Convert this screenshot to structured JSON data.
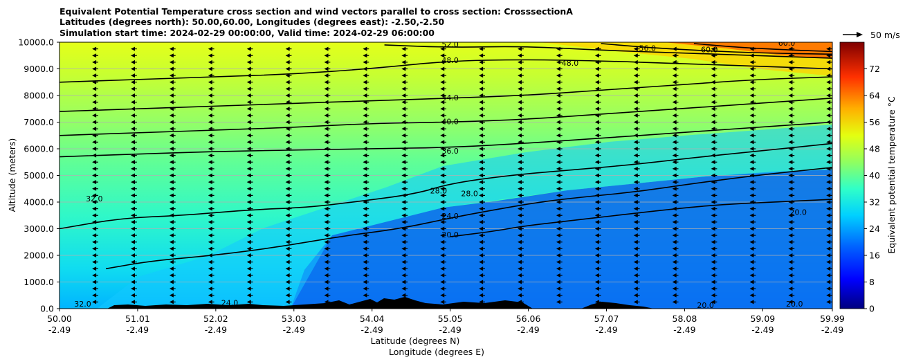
{
  "chart_data": {
    "type": "contourf",
    "title_lines": [
      "Equivalent Potential Temperature cross section and wind vectors parallel to cross section: CrosssectionA",
      "Latitudes (degrees north): 50.00,60.00, Longitudes (degrees east): -2.50,-2.50",
      "Simulation start time: 2024-02-29 00:00:00, Valid time: 2024-02-29 06:00:00"
    ],
    "ylabel": "Altitude (meters)",
    "xlabel_lines": [
      "Latitude (degrees N)",
      "Longitude (degrees E)"
    ],
    "ylim": [
      0,
      10000
    ],
    "y_ticks": [
      {
        "value": 0,
        "label": "0.0"
      },
      {
        "value": 1000,
        "label": "1000.0"
      },
      {
        "value": 2000,
        "label": "2000.0"
      },
      {
        "value": 3000,
        "label": "3000.0"
      },
      {
        "value": 4000,
        "label": "4000.0"
      },
      {
        "value": 5000,
        "label": "5000.0"
      },
      {
        "value": 6000,
        "label": "6000.0"
      },
      {
        "value": 7000,
        "label": "7000.0"
      },
      {
        "value": 8000,
        "label": "8000.0"
      },
      {
        "value": 9000,
        "label": "9000.0"
      },
      {
        "value": 10000,
        "label": "10000.0"
      }
    ],
    "xlim": [
      50.0,
      59.99
    ],
    "x_ticks": [
      {
        "value": 50.0,
        "lat": "50.00",
        "lon": "-2.49"
      },
      {
        "value": 51.01,
        "lat": "51.01",
        "lon": "-2.49"
      },
      {
        "value": 52.02,
        "lat": "52.02",
        "lon": "-2.49"
      },
      {
        "value": 53.03,
        "lat": "53.03",
        "lon": "-2.49"
      },
      {
        "value": 54.04,
        "lat": "54.04",
        "lon": "-2.49"
      },
      {
        "value": 55.05,
        "lat": "55.05",
        "lon": "-2.49"
      },
      {
        "value": 56.06,
        "lat": "56.06",
        "lon": "-2.49"
      },
      {
        "value": 57.07,
        "lat": "57.07",
        "lon": "-2.49"
      },
      {
        "value": 58.08,
        "lat": "58.08",
        "lon": "-2.49"
      },
      {
        "value": 59.09,
        "lat": "59.09",
        "lon": "-2.49"
      },
      {
        "value": 59.99,
        "lat": "59.99",
        "lon": "-2.49"
      }
    ],
    "colorbar": {
      "label": "Equivalent potential temperature $^\\circ$C",
      "label_text": "Equivalent potential temperature °C",
      "range": [
        0,
        80
      ],
      "ticks": [
        0,
        8,
        16,
        24,
        32,
        40,
        48,
        56,
        64,
        72
      ],
      "colormap": "jet"
    },
    "quiver_key": {
      "label": "50 m/s",
      "value": 50,
      "unit": "m/s"
    },
    "wind": {
      "u_ms": -20,
      "rows_m": [
        250,
        500,
        750,
        1000,
        1250,
        1500,
        1750,
        2000,
        2250,
        2500,
        2750,
        3000,
        3250,
        3500,
        3750,
        4000,
        4250,
        4500,
        4750,
        5000,
        5250,
        5500,
        5750,
        6000,
        6250,
        6500,
        6750,
        7000,
        7250,
        7500,
        7750,
        8000,
        8250,
        8500,
        8750,
        9000,
        9250,
        9500,
        9750
      ],
      "cols_lat": [
        50.0,
        50.5,
        51.0,
        51.5,
        52.0,
        52.5,
        53.0,
        53.5,
        54.0,
        54.5,
        55.0,
        55.5,
        56.0,
        56.5,
        57.0,
        57.5,
        58.0,
        58.5,
        59.0,
        59.5,
        59.99
      ]
    },
    "contour_lines": [
      {
        "level": 20,
        "points": [
          [
            55.05,
            2700
          ],
          [
            55.6,
            2900
          ],
          [
            56.0,
            3100
          ],
          [
            56.6,
            3300
          ],
          [
            57.2,
            3500
          ],
          [
            57.8,
            3700
          ],
          [
            58.5,
            3900
          ],
          [
            59.2,
            4000
          ],
          [
            59.99,
            4100
          ]
        ]
      },
      {
        "level": 24,
        "points": [
          [
            50.6,
            1500
          ],
          [
            51.2,
            1800
          ],
          [
            52.0,
            2000
          ],
          [
            52.8,
            2300
          ],
          [
            53.6,
            2700
          ],
          [
            54.4,
            3000
          ],
          [
            55.05,
            3400
          ],
          [
            55.6,
            3700
          ],
          [
            56.2,
            4000
          ],
          [
            56.8,
            4200
          ],
          [
            57.5,
            4400
          ],
          [
            58.2,
            4700
          ],
          [
            59.0,
            5000
          ],
          [
            59.99,
            5300
          ]
        ]
      },
      {
        "level": 28,
        "points": [
          [
            50.0,
            3000
          ],
          [
            50.8,
            3400
          ],
          [
            51.6,
            3500
          ],
          [
            52.4,
            3700
          ],
          [
            53.2,
            3800
          ],
          [
            53.8,
            4000
          ],
          [
            54.6,
            4300
          ],
          [
            55.05,
            4700
          ],
          [
            55.8,
            5000
          ],
          [
            56.6,
            5200
          ],
          [
            57.4,
            5400
          ],
          [
            58.3,
            5700
          ],
          [
            59.0,
            5900
          ],
          [
            59.99,
            6200
          ]
        ]
      },
      {
        "level": 36,
        "points": [
          [
            50.0,
            5700
          ],
          [
            51.0,
            5800
          ],
          [
            52.0,
            5900
          ],
          [
            53.0,
            5950
          ],
          [
            54.0,
            6000
          ],
          [
            55.05,
            6050
          ],
          [
            56.0,
            6200
          ],
          [
            57.0,
            6400
          ],
          [
            58.0,
            6600
          ],
          [
            59.0,
            6800
          ],
          [
            59.99,
            7000
          ]
        ]
      },
      {
        "level": 40,
        "points": [
          [
            50.0,
            6500
          ],
          [
            51.0,
            6600
          ],
          [
            52.0,
            6700
          ],
          [
            53.0,
            6800
          ],
          [
            54.0,
            6950
          ],
          [
            55.05,
            7000
          ],
          [
            56.0,
            7100
          ],
          [
            57.0,
            7300
          ],
          [
            58.0,
            7500
          ],
          [
            59.0,
            7700
          ],
          [
            59.99,
            7900
          ]
        ]
      },
      {
        "level": 44,
        "points": [
          [
            50.0,
            7400
          ],
          [
            51.0,
            7500
          ],
          [
            52.0,
            7600
          ],
          [
            53.0,
            7700
          ],
          [
            54.0,
            7800
          ],
          [
            55.05,
            7900
          ],
          [
            56.0,
            8000
          ],
          [
            57.0,
            8200
          ],
          [
            58.0,
            8400
          ],
          [
            59.0,
            8600
          ],
          [
            59.99,
            8700
          ]
        ]
      },
      {
        "level": 48,
        "points": [
          [
            50.0,
            8500
          ],
          [
            51.0,
            8600
          ],
          [
            52.0,
            8700
          ],
          [
            53.0,
            8800
          ],
          [
            54.0,
            9000
          ],
          [
            55.05,
            9300
          ],
          [
            56.0,
            9350
          ],
          [
            57.0,
            9300
          ],
          [
            58.0,
            9200
          ],
          [
            59.0,
            9100
          ],
          [
            59.99,
            9000
          ]
        ]
      },
      {
        "level": 52,
        "points": [
          [
            54.2,
            9900
          ],
          [
            55.05,
            9800
          ],
          [
            56.0,
            9850
          ],
          [
            57.0,
            9700
          ],
          [
            58.0,
            9600
          ],
          [
            59.0,
            9500
          ],
          [
            59.99,
            9400
          ]
        ]
      },
      {
        "level": 56,
        "points": [
          [
            57.0,
            9950
          ],
          [
            57.6,
            9800
          ],
          [
            58.2,
            9700
          ],
          [
            59.0,
            9600
          ],
          [
            59.99,
            9550
          ]
        ]
      },
      {
        "level": 60,
        "points": [
          [
            58.2,
            9950
          ],
          [
            58.8,
            9800
          ],
          [
            59.5,
            9700
          ],
          [
            59.99,
            9650
          ]
        ]
      }
    ],
    "contour_labels": [
      {
        "text": "52.0",
        "lat": 55.05,
        "alt": 9900
      },
      {
        "text": "48.0",
        "lat": 55.05,
        "alt": 9300
      },
      {
        "text": "56.0",
        "lat": 57.6,
        "alt": 9750
      },
      {
        "text": "60.0",
        "lat": 58.4,
        "alt": 9700
      },
      {
        "text": "60.0",
        "lat": 59.4,
        "alt": 9950
      },
      {
        "text": "48.0",
        "lat": 56.6,
        "alt": 9200
      },
      {
        "text": "44.0",
        "lat": 55.05,
        "alt": 7900
      },
      {
        "text": "40.0",
        "lat": 55.05,
        "alt": 7000
      },
      {
        "text": "36.0",
        "lat": 55.05,
        "alt": 5900
      },
      {
        "text": "28.0",
        "lat": 54.9,
        "alt": 4400
      },
      {
        "text": "28.0",
        "lat": 55.3,
        "alt": 4300
      },
      {
        "text": "24.0",
        "lat": 55.05,
        "alt": 3450
      },
      {
        "text": "20.0",
        "lat": 55.05,
        "alt": 2750
      },
      {
        "text": "32.0",
        "lat": 50.45,
        "alt": 4100
      },
      {
        "text": "20.0",
        "lat": 59.55,
        "alt": 3600
      },
      {
        "text": "32.0",
        "lat": 50.3,
        "alt": 150
      },
      {
        "text": "24.0",
        "lat": 52.2,
        "alt": 200
      },
      {
        "text": "20.0",
        "lat": 58.35,
        "alt": 100
      },
      {
        "text": "20.0",
        "lat": 59.5,
        "alt": 150
      }
    ]
  }
}
